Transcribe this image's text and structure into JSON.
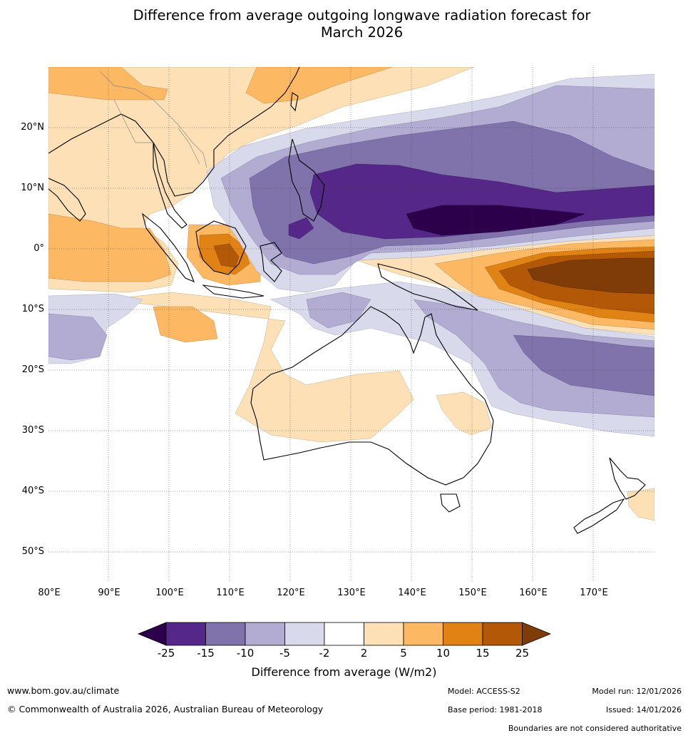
{
  "title": {
    "line1": "Difference from average outgoing longwave radiation forecast for",
    "line2": "March 2026"
  },
  "map": {
    "lat_labels": [
      "20°N",
      "10°N",
      "0°",
      "10°S",
      "20°S",
      "30°S",
      "40°S",
      "50°S"
    ],
    "lon_labels": [
      "80°E",
      "90°E",
      "100°E",
      "110°E",
      "120°E",
      "130°E",
      "140°E",
      "150°E",
      "160°E",
      "170°E"
    ],
    "extent": {
      "lon_min": 80,
      "lon_max": 180,
      "lat_min": -55,
      "lat_max": 30
    }
  },
  "legend": {
    "title": "Difference from average (W/m2)",
    "ticks": [
      "-25",
      "-15",
      "-10",
      "-5",
      "-2",
      "2",
      "5",
      "10",
      "15",
      "25"
    ],
    "colors": [
      "#2d004b",
      "#542788",
      "#8073ac",
      "#b2abd2",
      "#d8daeb",
      "#ffffff",
      "#fee0b6",
      "#fdb863",
      "#e08214",
      "#b35806",
      "#7f3b08"
    ]
  },
  "footer": {
    "website": "www.bom.gov.au/climate",
    "copyright": "© Commonwealth of Australia 2026, Australian Bureau of Meteorology",
    "model": "Model: ACCESS-S2",
    "base_period": "Base period: 1981-2018",
    "model_run": "Model run: 12/01/2026",
    "issued": "Issued: 14/01/2026",
    "disclaimer": "Boundaries are not considered authoritative"
  }
}
